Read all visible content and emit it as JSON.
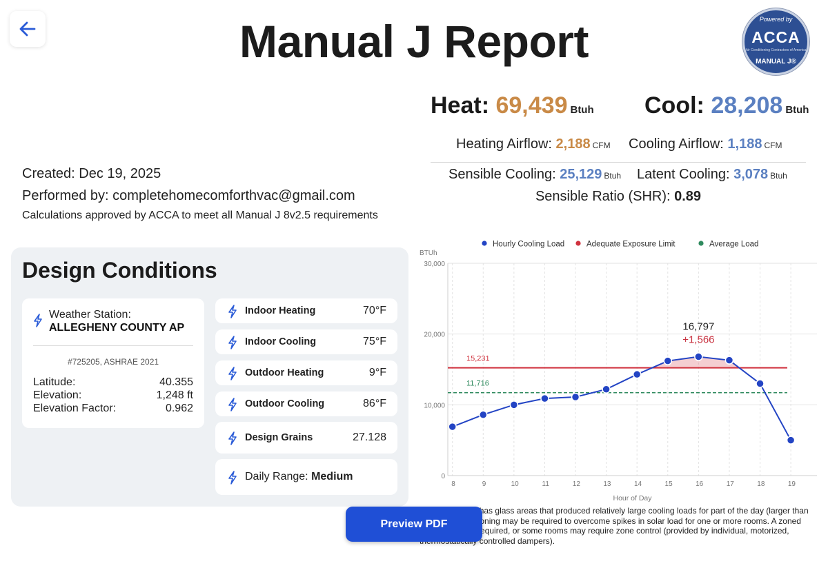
{
  "header": {
    "title": "Manual J Report",
    "badge": {
      "powered": "Powered by",
      "brand": "ACCA",
      "tagline": "Air Conditioning Contractors of America",
      "product": "MANUAL J®"
    }
  },
  "loads": {
    "heat_label": "Heat:",
    "heat_value": "69,439",
    "heat_unit": "Btuh",
    "cool_label": "Cool:",
    "cool_value": "28,208",
    "cool_unit": "Btuh",
    "heating_airflow_label": "Heating Airflow:",
    "heating_airflow_value": "2,188",
    "heating_airflow_unit": "CFM",
    "cooling_airflow_label": "Cooling Airflow:",
    "cooling_airflow_value": "1,188",
    "cooling_airflow_unit": "CFM",
    "sensible_label": "Sensible Cooling:",
    "sensible_value": "25,129",
    "sensible_unit": "Btuh",
    "latent_label": "Latent Cooling:",
    "latent_value": "3,078",
    "latent_unit": "Btuh",
    "shr_label": "Sensible Ratio (SHR):",
    "shr_value": "0.89"
  },
  "meta": {
    "created": "Created: Dec 19, 2025",
    "performed": "Performed by: completehomecomforthvac@gmail.com",
    "approval": "Calculations approved by ACCA to meet all Manual J 8v2.5 requirements"
  },
  "design": {
    "title": "Design Conditions",
    "station": {
      "label": "Weather Station:",
      "name": "ALLEGHENY COUNTY AP",
      "id": "#725205, ASHRAE 2021",
      "latitude_label": "Latitude:",
      "latitude": "40.355",
      "elevation_label": "Elevation:",
      "elevation": "1,248 ft",
      "factor_label": "Elevation Factor:",
      "factor": "0.962"
    },
    "conditions": [
      {
        "label": "Indoor Heating",
        "value": "70°F"
      },
      {
        "label": "Indoor Cooling",
        "value": "75°F"
      },
      {
        "label": "Outdoor Heating",
        "value": "9°F"
      },
      {
        "label": "Outdoor Cooling",
        "value": "86°F"
      },
      {
        "label": "Design Grains",
        "value": "27.128"
      }
    ],
    "daily_range_label": "Daily Range:",
    "daily_range_value": "Medium"
  },
  "chart_data": {
    "type": "line",
    "xlabel": "Hour of Day",
    "ylabel": "BTUh",
    "x": [
      8,
      9,
      10,
      11,
      12,
      13,
      14,
      15,
      16,
      17,
      18,
      19
    ],
    "ylim": [
      0,
      30000
    ],
    "yticks": [
      "0",
      "10,000",
      "20,000",
      "30,000"
    ],
    "grid": true,
    "legend_position": "top",
    "series": [
      {
        "name": "Hourly Cooling Load",
        "color": "#2344c4",
        "values": [
          6900,
          8600,
          10000,
          10900,
          11100,
          12200,
          14300,
          16200,
          16797,
          16300,
          13000,
          5000
        ]
      },
      {
        "name": "Adequate Exposure Limit",
        "color": "#d0323e",
        "constant": 15231,
        "label": "15,231"
      },
      {
        "name": "Average Load",
        "color": "#2f8a5e",
        "constant": 11716,
        "label": "11,716"
      }
    ],
    "annotation": {
      "x": 16,
      "value": "16,797",
      "delta": "+1,566"
    }
  },
  "chart_note": "This application has glass areas that produced relatively large cooling loads for part of the day (larger than average load). Zoning may be required to overcome spikes in solar load for one or more rooms. A zoned system may be required, or some rooms may require zone control (provided by individual, motorized, thermostatically controlled dampers).",
  "actions": {
    "preview": "Preview PDF"
  },
  "colors": {
    "heat": "#c98a47",
    "cool": "#5b80c1",
    "primary": "#1f4fd6"
  }
}
